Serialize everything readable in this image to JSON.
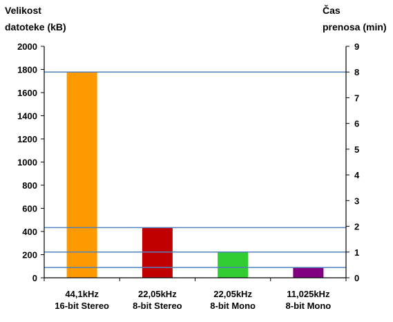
{
  "chart_data": {
    "type": "bar",
    "title": "",
    "ylabel_left": [
      "Velikost",
      "datoteke (kB)"
    ],
    "ylabel_right": [
      "Čas",
      "prenosa (min)"
    ],
    "categories": [
      [
        "44,1kHz",
        "16-bit Stereo"
      ],
      [
        "22,05kHz",
        "8-bit Stereo"
      ],
      [
        "22,05kHz",
        "8-bit Mono"
      ],
      [
        "11,025kHz",
        "8-bit Mono"
      ]
    ],
    "values": [
      1780,
      435,
      220,
      90
    ],
    "colors": [
      "#FF9900",
      "#C00000",
      "#33CC33",
      "#800080"
    ],
    "ylim_left": [
      0,
      2000
    ],
    "yticks_left": [
      "0",
      "200",
      "400",
      "600",
      "800",
      "1000",
      "1200",
      "1400",
      "1600",
      "1800",
      "2000"
    ],
    "ylim_right": [
      0,
      9
    ],
    "yticks_right": [
      "0",
      "1",
      "2",
      "3",
      "4",
      "5",
      "6",
      "7",
      "8",
      "9"
    ],
    "reference_lines_right_axis": [
      8,
      1.95,
      1,
      0.4
    ],
    "reference_line_color": "#4F81BD",
    "grid": false,
    "legend": "none"
  }
}
